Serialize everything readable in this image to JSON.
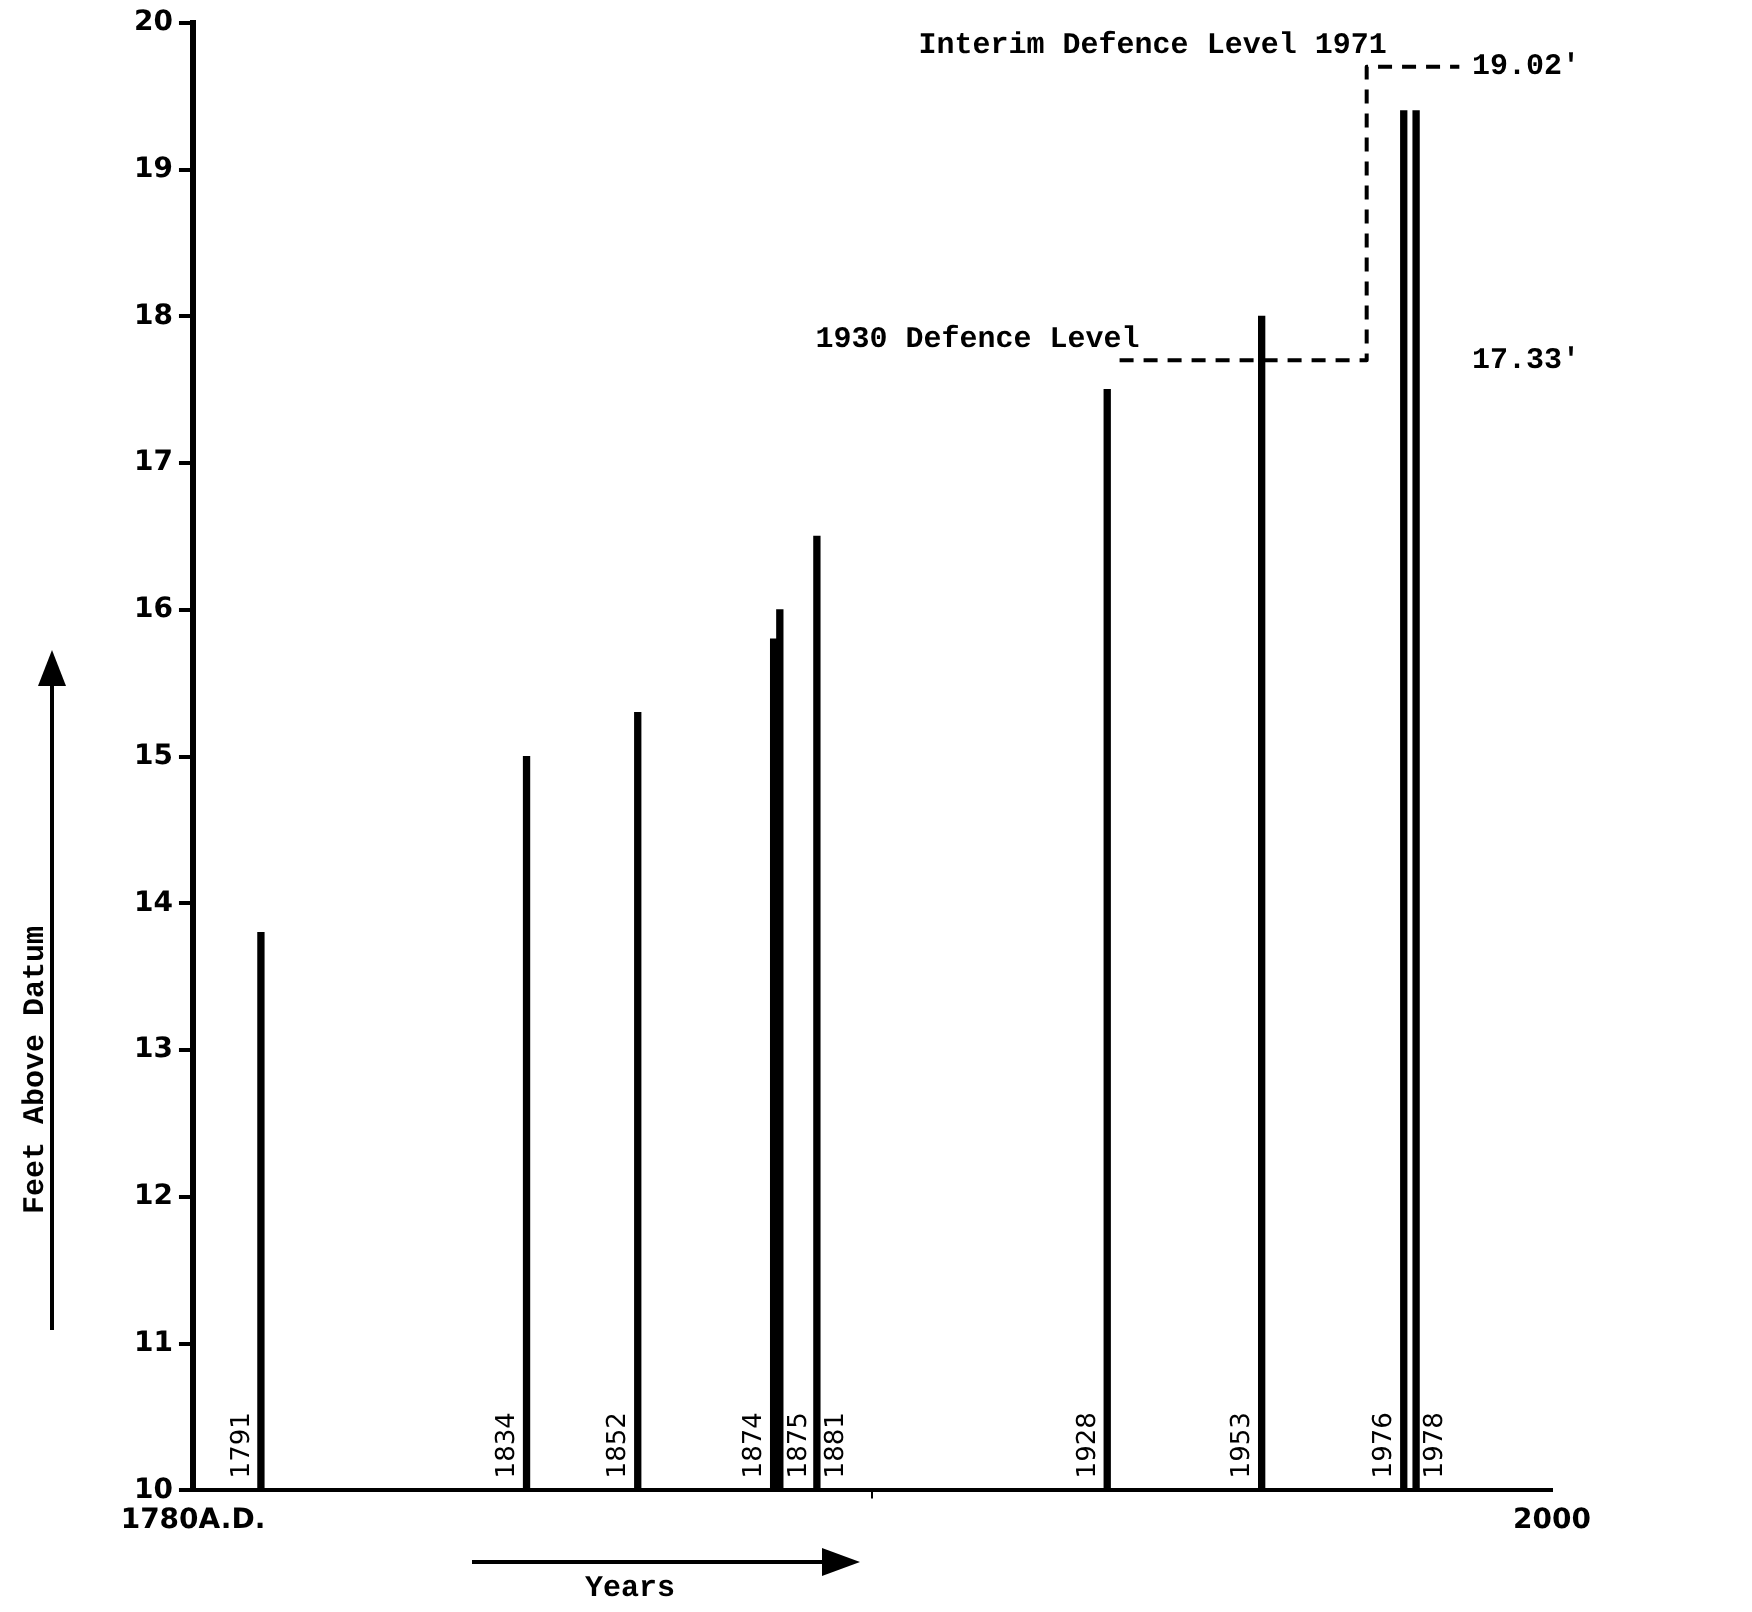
{
  "chart_data": {
    "type": "bar",
    "xlabel": "Years",
    "ylabel": "Feet Above Datum",
    "x": [
      1791,
      1834,
      1852,
      1874,
      1875,
      1881,
      1928,
      1953,
      1976,
      1978
    ],
    "series": [
      {
        "color": "#000000",
        "values": [
          13.8,
          15.0,
          15.3,
          15.8,
          16.0,
          16.5,
          17.5,
          18.0,
          19.4,
          19.4
        ]
      },
      {
        "type": "line",
        "color": "#000000",
        "line_style": "dashed",
        "x": [
          1930,
          1970,
          1970,
          1985
        ],
        "values": [
          17.7,
          17.7,
          19.7,
          19.7
        ]
      }
    ],
    "xlim": [
      1780,
      2000
    ],
    "xticks": [
      {
        "value": 1780,
        "label": "1780A.D."
      },
      2000
    ],
    "ylim": [
      10,
      20
    ],
    "yticks": [
      10,
      11,
      12,
      13,
      14,
      15,
      16,
      17,
      18,
      19,
      20
    ],
    "marker": "none",
    "annotations": [
      {
        "text": "1791",
        "x": 1791,
        "y": 10
      },
      {
        "text": "1834",
        "x": 1834,
        "y": 10
      },
      {
        "text": "1852",
        "x": 1852,
        "y": 10
      },
      {
        "text": "1874",
        "x": 1874,
        "y": 10
      },
      {
        "text": "1875",
        "x": 1875,
        "y": 10
      },
      {
        "text": "1881",
        "x": 1881,
        "y": 10
      },
      {
        "text": "1928",
        "x": 1928,
        "y": 10
      },
      {
        "text": "1953",
        "x": 1953,
        "y": 10
      },
      {
        "text": "1976",
        "x": 1976,
        "y": 10
      },
      {
        "text": "1978",
        "x": 1978,
        "y": 10
      },
      {
        "text": "1930 Defence Level",
        "x": 1930,
        "y": 17.7
      },
      {
        "text": "Interim Defence Level 1971",
        "x": 1970,
        "y": 19.7
      },
      "17.33'",
      "19.02'"
    ]
  }
}
